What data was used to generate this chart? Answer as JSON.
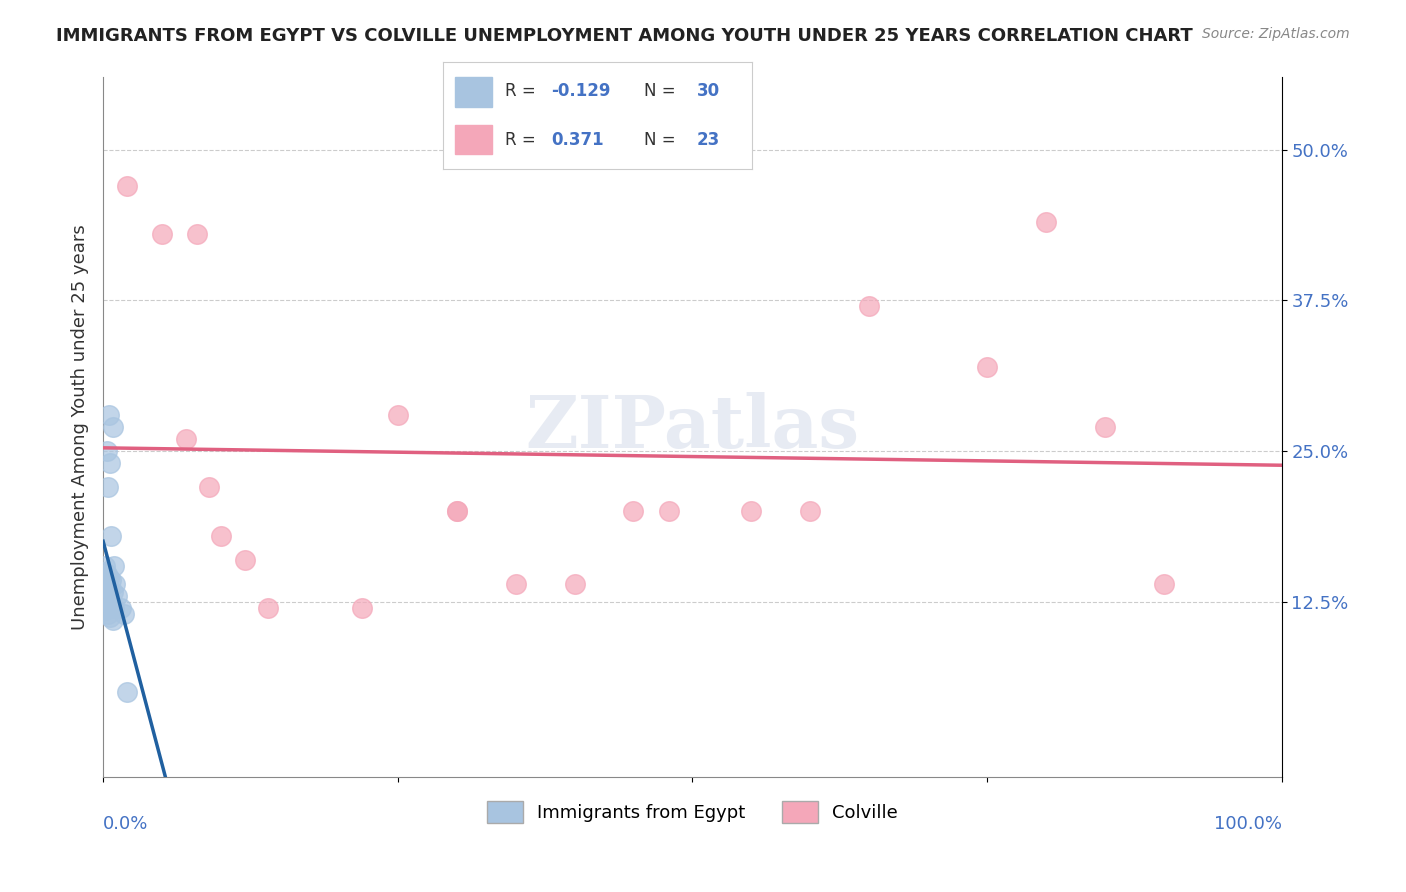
{
  "title": "IMMIGRANTS FROM EGYPT VS COLVILLE UNEMPLOYMENT AMONG YOUTH UNDER 25 YEARS CORRELATION CHART",
  "source": "Source: ZipAtlas.com",
  "xlabel_blue": "0.0%",
  "xlabel_pink": "100.0%",
  "ylabel": "Unemployment Among Youth under 25 years",
  "ytick_labels": [
    "50.0%",
    "37.5%",
    "25.0%",
    "12.5%"
  ],
  "ytick_vals": [
    0.5,
    0.375,
    0.25,
    0.125
  ],
  "xlim": [
    0.0,
    1.0
  ],
  "ylim": [
    -0.02,
    0.56
  ],
  "blue_label": "Immigrants from Egypt",
  "pink_label": "Colville",
  "blue_R": -0.129,
  "blue_N": 30,
  "pink_R": 0.371,
  "pink_N": 23,
  "blue_color": "#a8c4e0",
  "pink_color": "#f4a7b9",
  "blue_line_color": "#2060a0",
  "pink_line_color": "#e06080",
  "blue_scatter": [
    [
      0.005,
      0.28
    ],
    [
      0.008,
      0.27
    ],
    [
      0.003,
      0.25
    ],
    [
      0.006,
      0.24
    ],
    [
      0.004,
      0.22
    ],
    [
      0.007,
      0.18
    ],
    [
      0.002,
      0.155
    ],
    [
      0.009,
      0.155
    ],
    [
      0.001,
      0.15
    ],
    [
      0.003,
      0.148
    ],
    [
      0.005,
      0.145
    ],
    [
      0.007,
      0.143
    ],
    [
      0.002,
      0.14
    ],
    [
      0.004,
      0.138
    ],
    [
      0.006,
      0.135
    ],
    [
      0.008,
      0.133
    ],
    [
      0.001,
      0.13
    ],
    [
      0.003,
      0.128
    ],
    [
      0.005,
      0.125
    ],
    [
      0.007,
      0.122
    ],
    [
      0.009,
      0.12
    ],
    [
      0.002,
      0.118
    ],
    [
      0.004,
      0.115
    ],
    [
      0.006,
      0.112
    ],
    [
      0.008,
      0.11
    ],
    [
      0.01,
      0.14
    ],
    [
      0.012,
      0.13
    ],
    [
      0.015,
      0.12
    ],
    [
      0.02,
      0.05
    ],
    [
      0.018,
      0.115
    ]
  ],
  "pink_scatter": [
    [
      0.02,
      0.47
    ],
    [
      0.05,
      0.43
    ],
    [
      0.08,
      0.43
    ],
    [
      0.25,
      0.28
    ],
    [
      0.3,
      0.2
    ],
    [
      0.3,
      0.2
    ],
    [
      0.35,
      0.14
    ],
    [
      0.4,
      0.14
    ],
    [
      0.45,
      0.2
    ],
    [
      0.48,
      0.2
    ],
    [
      0.55,
      0.2
    ],
    [
      0.6,
      0.2
    ],
    [
      0.65,
      0.37
    ],
    [
      0.75,
      0.32
    ],
    [
      0.8,
      0.44
    ],
    [
      0.85,
      0.27
    ],
    [
      0.9,
      0.14
    ],
    [
      0.07,
      0.26
    ],
    [
      0.09,
      0.22
    ],
    [
      0.1,
      0.18
    ],
    [
      0.12,
      0.16
    ],
    [
      0.14,
      0.12
    ],
    [
      0.22,
      0.12
    ]
  ],
  "watermark": "ZIPatlas",
  "background_color": "#ffffff",
  "grid_color": "#cccccc"
}
